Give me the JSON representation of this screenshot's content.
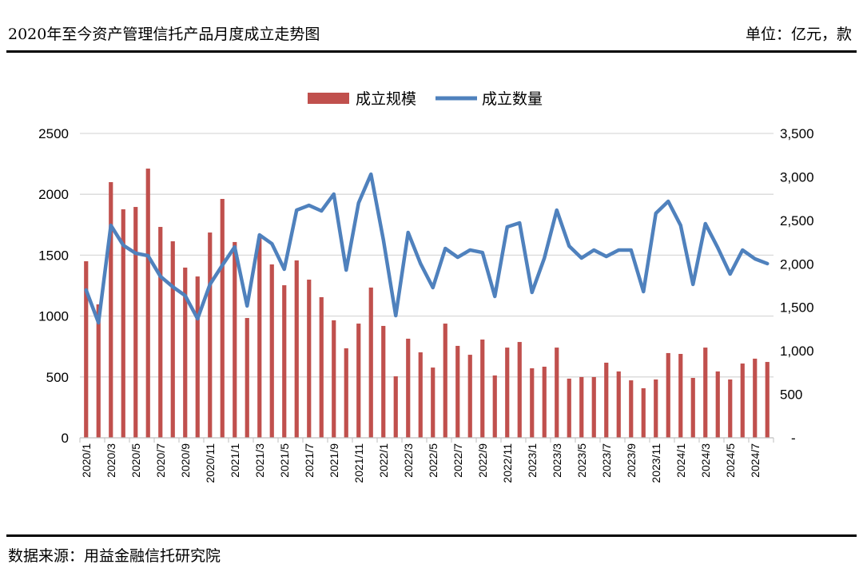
{
  "header": {
    "title": "2020年至今资产管理信托产品月度成立走势图",
    "unit": "单位：亿元，款"
  },
  "footer": {
    "source": "数据来源：用益金融信托研究院"
  },
  "chart_data": {
    "type": "bar+line",
    "title": "",
    "legend_position": "top",
    "grid": true,
    "categories": [
      "2020/1",
      "2020/2",
      "2020/3",
      "2020/4",
      "2020/5",
      "2020/6",
      "2020/7",
      "2020/8",
      "2020/9",
      "2020/10",
      "2020/11",
      "2020/12",
      "2021/1",
      "2021/2",
      "2021/3",
      "2021/4",
      "2021/5",
      "2021/6",
      "2021/7",
      "2021/8",
      "2021/9",
      "2021/10",
      "2021/11",
      "2021/12",
      "2022/1",
      "2022/2",
      "2022/3",
      "2022/4",
      "2022/5",
      "2022/6",
      "2022/7",
      "2022/8",
      "2022/9",
      "2022/10",
      "2022/11",
      "2022/12",
      "2023/1",
      "2023/2",
      "2023/3",
      "2023/4",
      "2023/5",
      "2023/6",
      "2023/7",
      "2023/8",
      "2023/9",
      "2023/10",
      "2023/11",
      "2023/12",
      "2024/1",
      "2024/2",
      "2024/3",
      "2024/4",
      "2024/5",
      "2024/6",
      "2024/7",
      "2024/8"
    ],
    "x_tick_labels": [
      "2020/1",
      "2020/3",
      "2020/5",
      "2020/7",
      "2020/9",
      "2020/11",
      "2021/1",
      "2021/3",
      "2021/5",
      "2021/7",
      "2021/9",
      "2021/11",
      "2022/1",
      "2022/3",
      "2022/5",
      "2022/7",
      "2022/9",
      "2022/11",
      "2023/1",
      "2023/3",
      "2023/5",
      "2023/7",
      "2023/9",
      "2023/11",
      "2024/1",
      "2024/3",
      "2024/5",
      "2024/7"
    ],
    "left_axis": {
      "ylim": [
        0,
        2500
      ],
      "ticks": [
        "0",
        "500",
        "1000",
        "1500",
        "2000",
        "2500"
      ]
    },
    "right_axis": {
      "ylim": [
        0,
        3500
      ],
      "ticks": [
        "-",
        "500",
        "1,000",
        "1,500",
        "2,000",
        "2,500",
        "3,000",
        "3,500"
      ]
    },
    "series": [
      {
        "name": "成立规模",
        "type": "bar",
        "axis": "left",
        "color": "#c0504d",
        "values": [
          1450,
          1096,
          2100,
          1877,
          1896,
          2211,
          1732,
          1614,
          1398,
          1325,
          1686,
          1962,
          1608,
          984,
          1647,
          1424,
          1253,
          1457,
          1299,
          1155,
          965,
          735,
          938,
          1234,
          919,
          505,
          814,
          702,
          577,
          938,
          755,
          682,
          807,
          512,
          741,
          787,
          571,
          584,
          741,
          486,
          499,
          499,
          617,
          545,
          472,
          407,
          479,
          696,
          689,
          492,
          741,
          545,
          479,
          610,
          650,
          623
        ]
      },
      {
        "name": "成立数量",
        "type": "line",
        "axis": "right",
        "color": "#4f81bd",
        "values": [
          1700,
          1323,
          2443,
          2214,
          2122,
          2094,
          1856,
          1736,
          1635,
          1369,
          1764,
          1984,
          2195,
          1516,
          2333,
          2232,
          1938,
          2618,
          2673,
          2609,
          2802,
          1929,
          2701,
          3031,
          2278,
          1405,
          2361,
          2003,
          1727,
          2177,
          2076,
          2159,
          2131,
          1626,
          2425,
          2471,
          1672,
          2067,
          2618,
          2205,
          2067,
          2159,
          2085,
          2159,
          2159,
          1681,
          2581,
          2719,
          2443,
          1764,
          2462,
          2186,
          1883,
          2159,
          2058,
          2003
        ]
      }
    ]
  }
}
